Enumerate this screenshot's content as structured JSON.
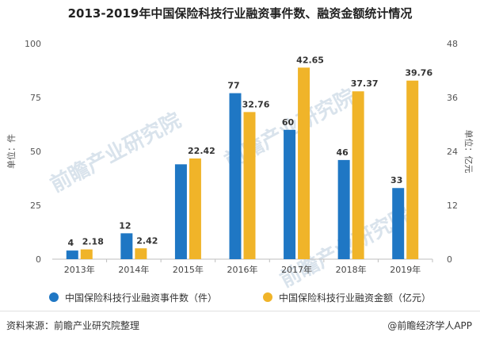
{
  "title": "2013-2019年中国保险科技行业融资事件数、融资金额统计情况",
  "left_axis_label": "单位：件",
  "right_axis_label": "单位：亿元",
  "watermark": "前瞻产业研究院",
  "footer_source": "资料来源：前瞻产业研究院整理",
  "footer_brand": "@前瞻经济学人APP",
  "colors": {
    "count": "#1f77c4",
    "amount": "#f0b429"
  },
  "chart_data": {
    "type": "bar",
    "categories": [
      "2013年",
      "2014年",
      "2015年",
      "2016年",
      "2017年",
      "2018年",
      "2019年"
    ],
    "series": [
      {
        "name": "中国保险科技行业融资事件数（件）",
        "axis": "left",
        "values": [
          4,
          12,
          44,
          77,
          60,
          46,
          33
        ],
        "labels": [
          "4",
          "12",
          "",
          "77",
          "60",
          "46",
          "33"
        ]
      },
      {
        "name": "中国保险科技行业融资金额（亿元）",
        "axis": "right",
        "values": [
          2.18,
          2.42,
          22.42,
          32.76,
          42.65,
          37.37,
          39.76
        ],
        "labels": [
          "2.18",
          "2.42",
          "22.42",
          "32.76",
          "42.65",
          "37.37",
          "39.76"
        ]
      }
    ],
    "left_ylim": [
      0,
      100
    ],
    "left_ticks": [
      0,
      25,
      50,
      75,
      100
    ],
    "right_ylim": [
      0,
      48
    ],
    "right_ticks": [
      0,
      12,
      24,
      36,
      48
    ],
    "grid": false,
    "legend_position": "bottom"
  }
}
